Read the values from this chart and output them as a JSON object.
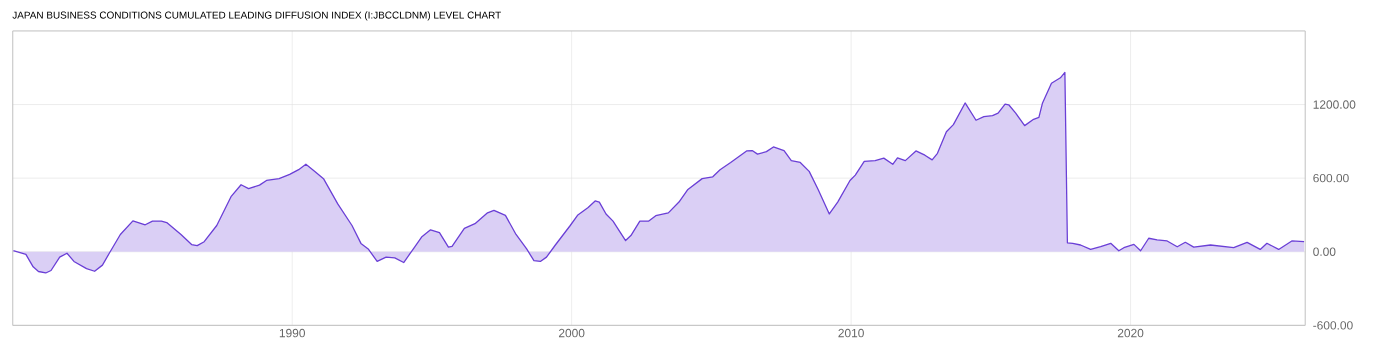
{
  "chart_data": {
    "type": "area",
    "title": "JAPAN BUSINESS CONDITIONS CUMULATED LEADING DIFFUSION INDEX (I:JBCCLDNM) LEVEL CHART",
    "x": [
      1980.02,
      1980.47,
      1980.73,
      1980.92,
      1981.18,
      1981.37,
      1981.68,
      1981.94,
      1982.19,
      1982.64,
      1982.93,
      1983.21,
      1983.47,
      1983.85,
      1984.3,
      1984.74,
      1985.0,
      1985.32,
      1985.51,
      1986.02,
      1986.4,
      1986.6,
      1986.85,
      1987.3,
      1987.81,
      1988.17,
      1988.44,
      1988.83,
      1989.08,
      1989.53,
      1989.91,
      1990.23,
      1990.49,
      1990.81,
      1991.12,
      1991.63,
      1992.14,
      1992.46,
      1992.72,
      1993.04,
      1993.36,
      1993.67,
      1993.99,
      1994.38,
      1994.63,
      1994.95,
      1995.27,
      1995.59,
      1995.72,
      1996.16,
      1996.54,
      1996.99,
      1997.22,
      1997.63,
      1998.01,
      1998.39,
      1998.65,
      1998.88,
      1999.1,
      1999.41,
      1999.95,
      2000.21,
      2000.59,
      2000.84,
      2000.99,
      2001.23,
      2001.48,
      2001.93,
      2002.12,
      2002.44,
      2002.76,
      2003.01,
      2003.46,
      2003.84,
      2004.16,
      2004.67,
      2005.05,
      2005.31,
      2005.69,
      2006.26,
      2006.46,
      2006.65,
      2006.97,
      2007.22,
      2007.6,
      2007.86,
      2008.18,
      2008.5,
      2008.82,
      2009.22,
      2009.52,
      2009.96,
      2010.15,
      2010.47,
      2010.86,
      2011.17,
      2011.49,
      2011.66,
      2011.94,
      2012.32,
      2012.64,
      2012.9,
      2013.09,
      2013.41,
      2013.66,
      2014.08,
      2014.47,
      2014.75,
      2015.06,
      2015.26,
      2015.51,
      2015.64,
      2015.89,
      2016.21,
      2016.53,
      2016.72,
      2016.85,
      2017.17,
      2017.49,
      2017.65,
      2017.74,
      2017.93,
      2018.21,
      2018.57,
      2018.93,
      2019.29,
      2019.58,
      2019.76,
      2020.12,
      2020.36,
      2020.65,
      2020.95,
      2021.31,
      2021.67,
      2021.96,
      2022.26,
      2022.86,
      2023.69,
      2024.17,
      2024.64,
      2024.88,
      2025.3,
      2025.77,
      2026.21
    ],
    "series": [
      {
        "color": "#6a3fd6",
        "values": [
          9,
          -21,
          -123,
          -161,
          -173,
          -153,
          -44,
          -12,
          -79,
          -138,
          -159,
          -109,
          -6,
          141,
          252,
          220,
          250,
          250,
          238,
          141,
          59,
          50,
          82,
          214,
          449,
          546,
          514,
          543,
          581,
          596,
          631,
          669,
          713,
          655,
          596,
          390,
          214,
          68,
          23,
          -79,
          -44,
          -50,
          -88,
          38,
          120,
          179,
          156,
          38,
          44,
          191,
          229,
          317,
          338,
          297,
          141,
          23,
          -73,
          -79,
          -44,
          53,
          214,
          297,
          361,
          414,
          405,
          308,
          250,
          91,
          132,
          250,
          250,
          294,
          317,
          405,
          508,
          596,
          611,
          669,
          728,
          822,
          825,
          796,
          816,
          854,
          825,
          743,
          728,
          655,
          508,
          308,
          405,
          581,
          625,
          737,
          743,
          763,
          713,
          766,
          743,
          822,
          787,
          749,
          802,
          978,
          1036,
          1213,
          1072,
          1101,
          1110,
          1130,
          1204,
          1198,
          1130,
          1028,
          1080,
          1095,
          1213,
          1374,
          1418,
          1462,
          73,
          68,
          55,
          19,
          41,
          69,
          8,
          33,
          60,
          8,
          110,
          96,
          88,
          41,
          77,
          38,
          55,
          33,
          77,
          19,
          69,
          19,
          88,
          82
        ]
      }
    ],
    "xlim": [
      1980,
      2026.25
    ],
    "ylim": [
      -600,
      1800
    ],
    "xticks": [
      1990,
      2000,
      2010,
      2020
    ],
    "yticks": [
      {
        "value": -600,
        "label": "-600.00"
      },
      {
        "value": 0,
        "label": "0.00"
      },
      {
        "value": 600,
        "label": "600.00"
      },
      {
        "value": 1200,
        "label": "1200.00"
      }
    ],
    "grid": true
  }
}
